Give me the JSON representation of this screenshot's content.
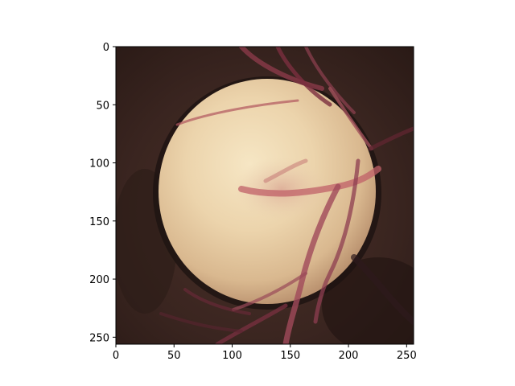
{
  "image": {
    "subject": "fundus-optic-disc",
    "colors": {
      "background": "#3a2520",
      "disc_center": "#f0dcb4",
      "disc_edge": "#c9a27e",
      "rim": "#1e1412",
      "vessel": "#b0555e",
      "vessel_dark": "#6e2a3a"
    }
  },
  "axes": {
    "x": {
      "range": [
        0,
        256
      ],
      "ticks": [
        {
          "value": 0,
          "label": "0"
        },
        {
          "value": 50,
          "label": "50"
        },
        {
          "value": 100,
          "label": "100"
        },
        {
          "value": 150,
          "label": "150"
        },
        {
          "value": 200,
          "label": "200"
        },
        {
          "value": 250,
          "label": "250"
        }
      ]
    },
    "y": {
      "range": [
        0,
        256
      ],
      "inverted": true,
      "ticks": [
        {
          "value": 0,
          "label": "0"
        },
        {
          "value": 50,
          "label": "50"
        },
        {
          "value": 100,
          "label": "100"
        },
        {
          "value": 150,
          "label": "150"
        },
        {
          "value": 200,
          "label": "200"
        },
        {
          "value": 250,
          "label": "250"
        }
      ]
    }
  }
}
